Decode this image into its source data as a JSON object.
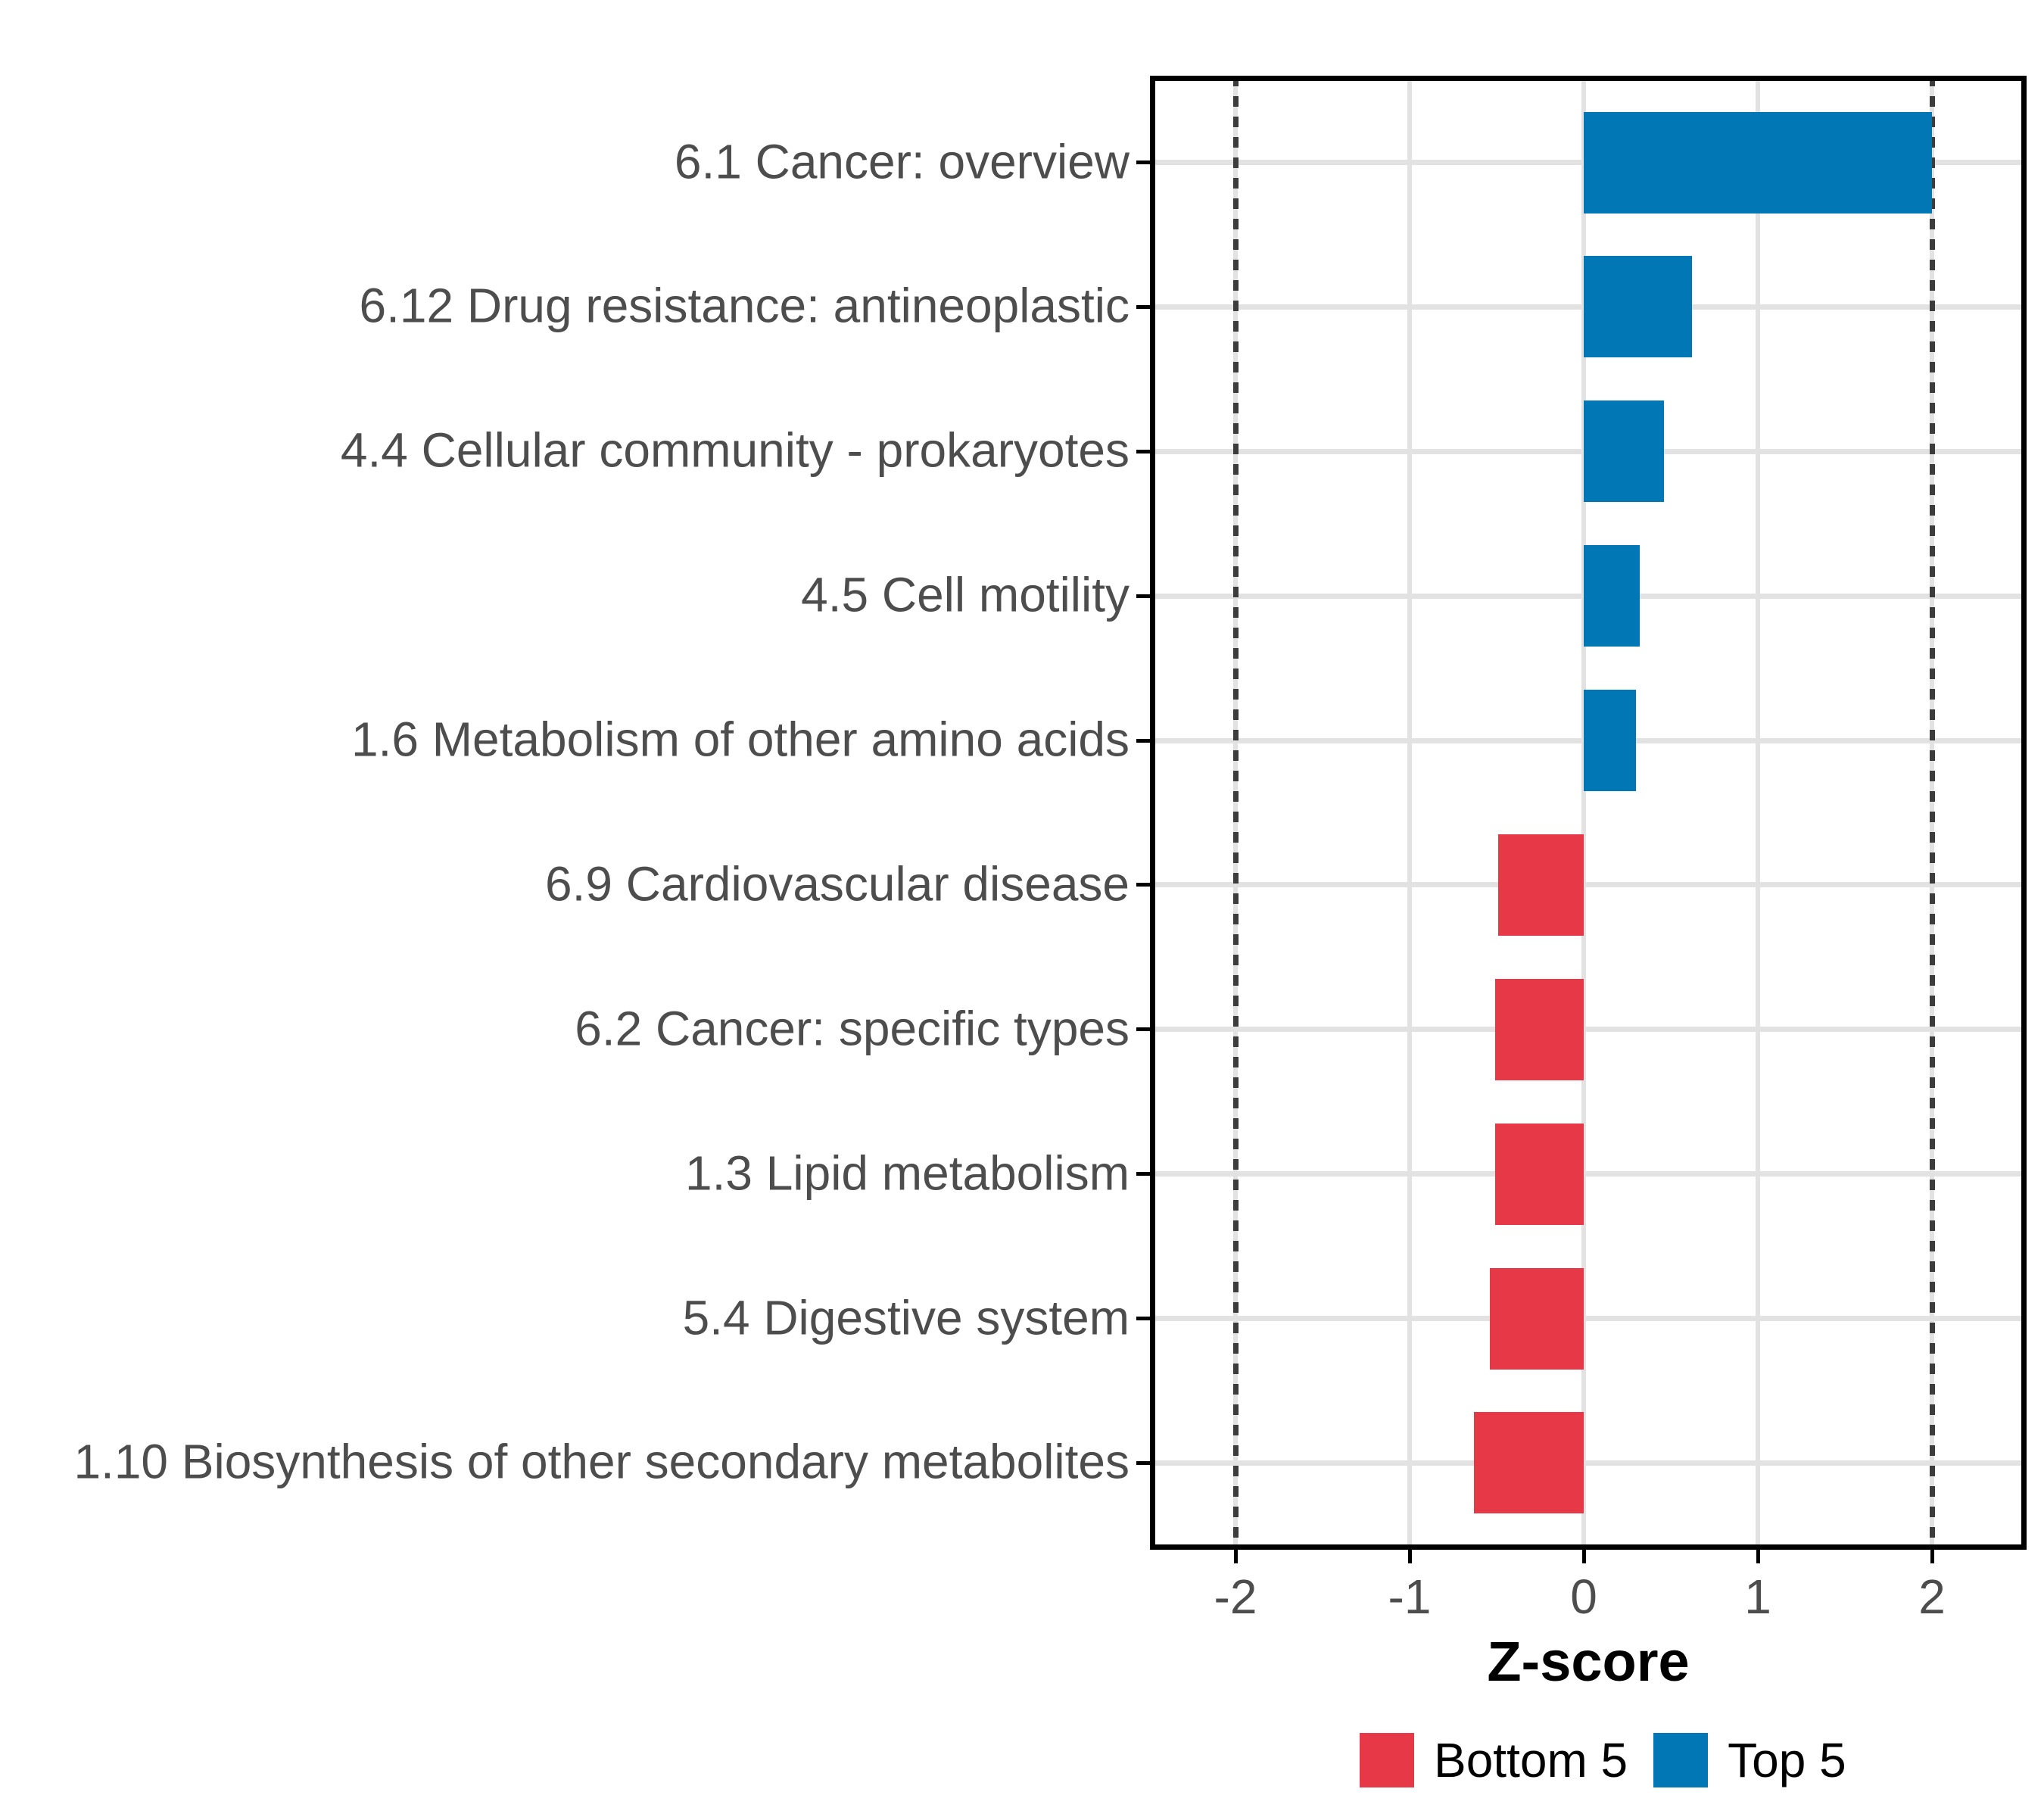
{
  "chart_data": {
    "type": "bar",
    "orientation": "horizontal",
    "title": "",
    "xlabel": "Z-score",
    "ylabel": "",
    "xlim": [
      -2.49,
      2.54
    ],
    "x_ticks": [
      -2,
      -1,
      0,
      1,
      2
    ],
    "x_tick_labels": [
      "-2",
      "-1",
      "0",
      "1",
      "2"
    ],
    "grid": {
      "show": true,
      "color": "#E2E2E2"
    },
    "reference_lines": {
      "values": [
        -2,
        2
      ],
      "style": "dotted",
      "color": "#3C3C3C"
    },
    "legend_position": "bottom",
    "legend": [
      {
        "label": "Bottom 5",
        "group": "Bottom 5",
        "color": "#E73847"
      },
      {
        "label": "Top 5",
        "group": "Top 5",
        "color": "#0277B6"
      }
    ],
    "categories": [
      "6.1 Cancer: overview",
      "6.12 Drug resistance: antineoplastic",
      "4.4 Cellular community - prokaryotes",
      "4.5 Cell motility",
      "1.6 Metabolism of other amino acids",
      "6.9 Cardiovascular disease",
      "6.2 Cancer: specific types",
      "1.3 Lipid metabolism",
      "5.4 Digestive system",
      "1.10 Biosynthesis of other secondary metabolites"
    ],
    "rows": [
      {
        "category": "6.1 Cancer: overview",
        "value": 2.0,
        "group": "Top 5"
      },
      {
        "category": "6.12 Drug resistance: antineoplastic",
        "value": 0.62,
        "group": "Top 5"
      },
      {
        "category": "4.4 Cellular community - prokaryotes",
        "value": 0.46,
        "group": "Top 5"
      },
      {
        "category": "4.5 Cell motility",
        "value": 0.32,
        "group": "Top 5"
      },
      {
        "category": "1.6 Metabolism of other amino acids",
        "value": 0.3,
        "group": "Top 5"
      },
      {
        "category": "6.9 Cardiovascular disease",
        "value": -0.49,
        "group": "Bottom 5"
      },
      {
        "category": "6.2 Cancer: specific types",
        "value": -0.51,
        "group": "Bottom 5"
      },
      {
        "category": "1.3 Lipid metabolism",
        "value": -0.51,
        "group": "Bottom 5"
      },
      {
        "category": "5.4 Digestive system",
        "value": -0.54,
        "group": "Bottom 5"
      },
      {
        "category": "1.10 Biosynthesis of other secondary metabolites",
        "value": -0.63,
        "group": "Bottom 5"
      }
    ],
    "colors": {
      "top5": "#0277B6",
      "bottom5": "#E73847",
      "grid": "#E2E2E2",
      "reference": "#3C3C3C",
      "axis_text": "#4D4D4D",
      "axis_title": "#000000",
      "panel_border": "#000000",
      "background": "#FFFFFF"
    }
  }
}
